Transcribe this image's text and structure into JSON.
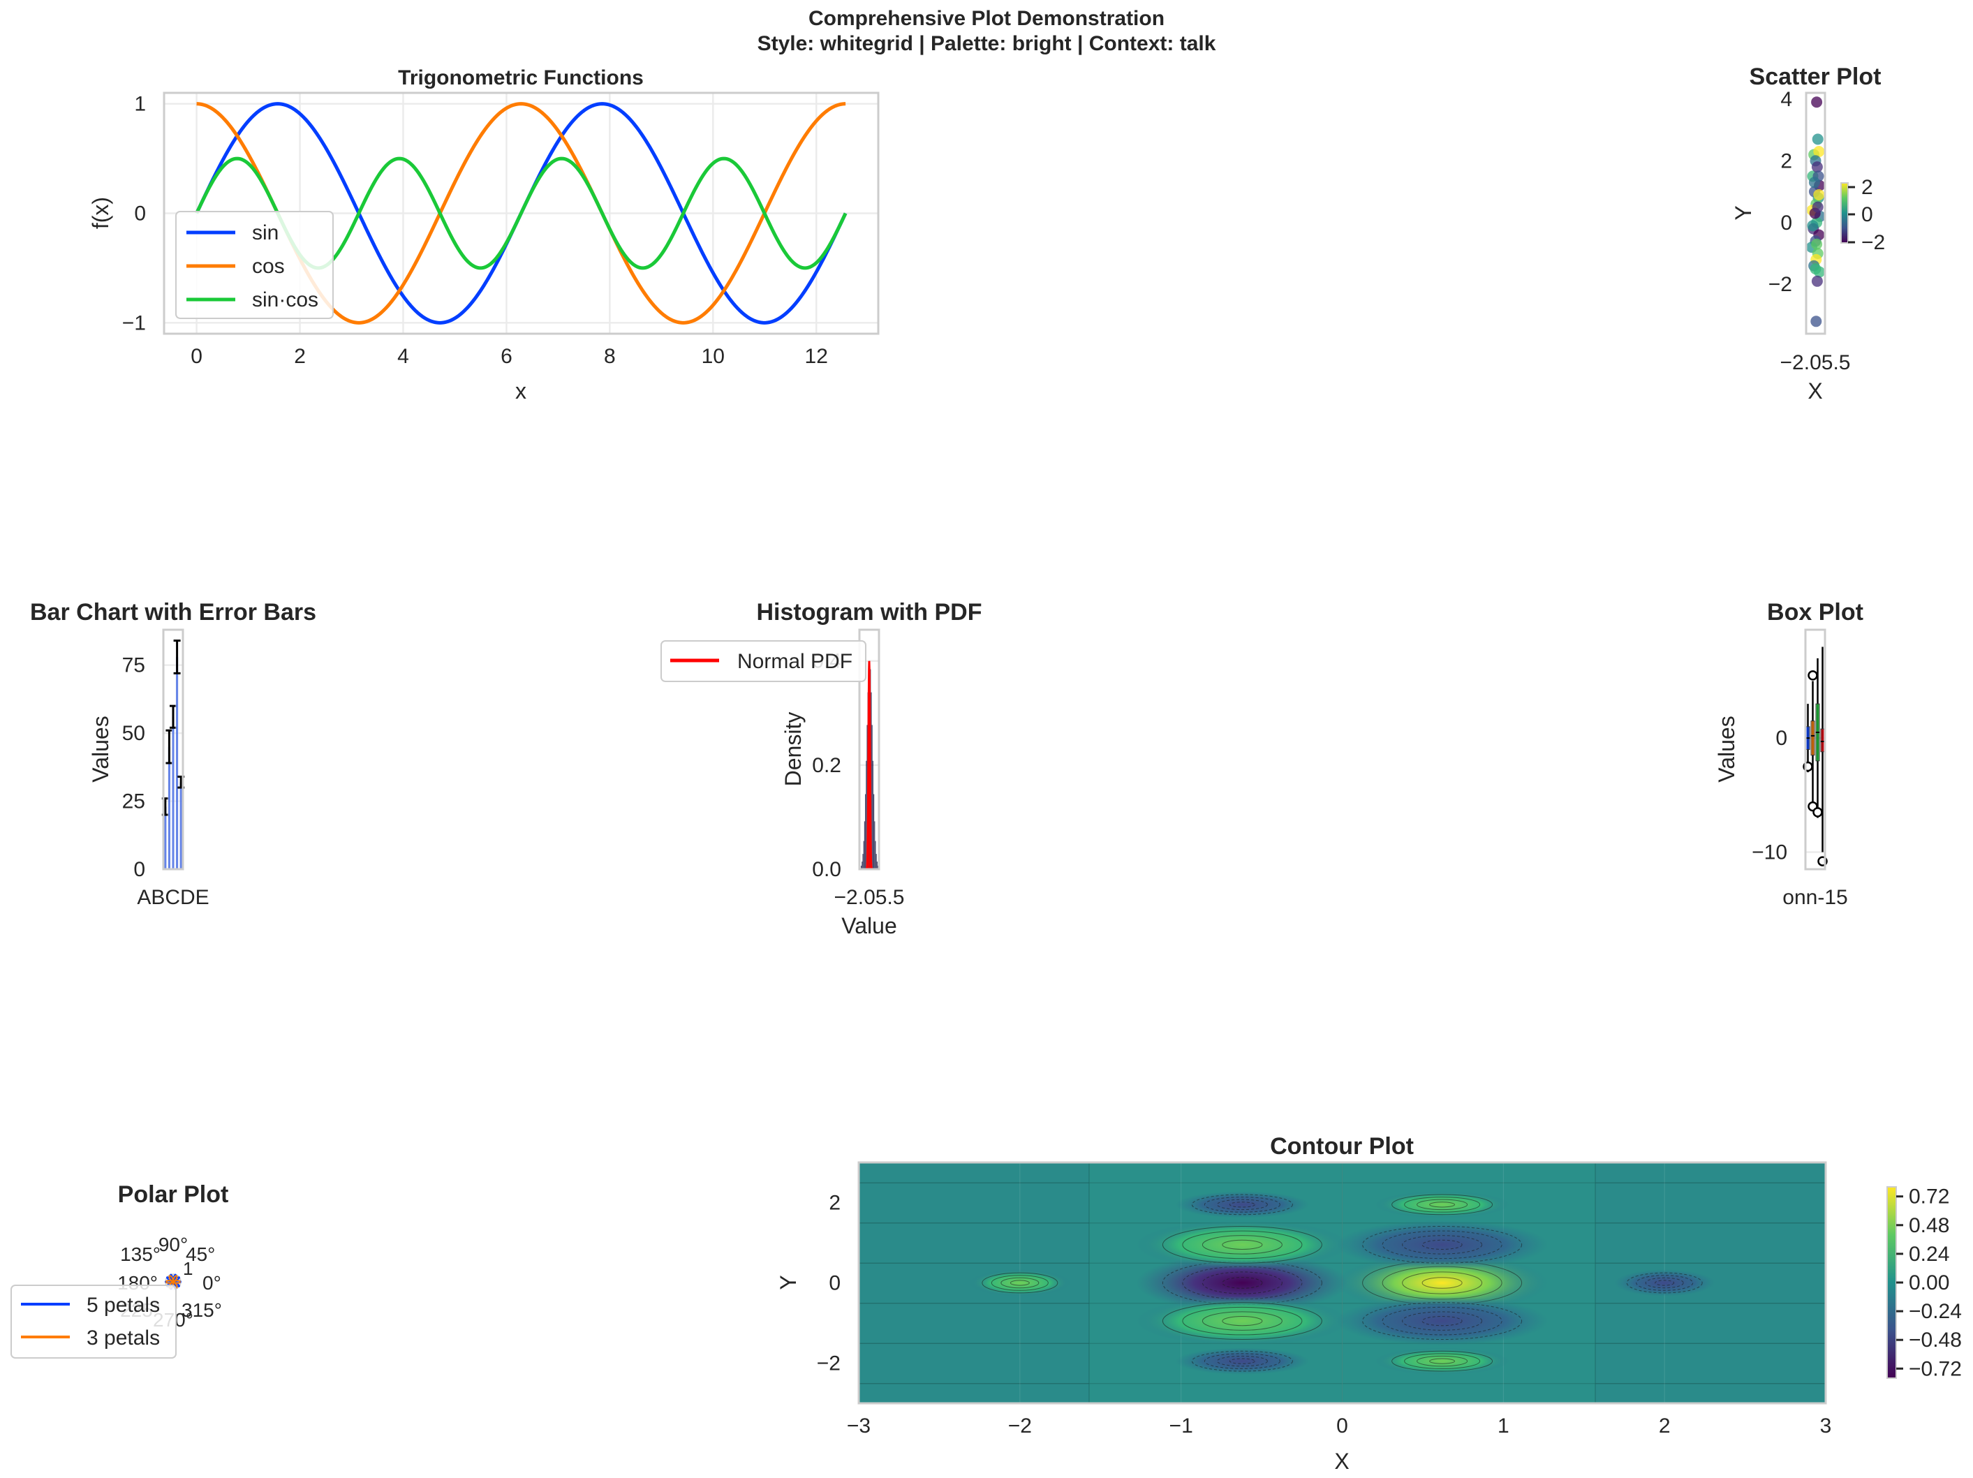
{
  "figure": {
    "suptitle_line1": "Comprehensive Plot Demonstration",
    "suptitle_line2": "Style: whitegrid | Palette: bright | Context: talk"
  },
  "palette": {
    "blue": "#023eff",
    "orange": "#ff7c00",
    "green": "#1ac938",
    "red": "#e8000b",
    "purple": "#8b2be2",
    "brown": "#9f4800",
    "pink": "#f14cc1",
    "gray": "#a3a3a3"
  },
  "chart_data": [
    {
      "id": "trig",
      "type": "line",
      "title": "Trigonometric Functions",
      "xlabel": "x",
      "ylabel": "f(x)",
      "xlim": [
        -0.63,
        13.2
      ],
      "ylim": [
        -1.1,
        1.1
      ],
      "xticks": [
        "0",
        "2",
        "4",
        "6",
        "8",
        "10",
        "12"
      ],
      "yticks": [
        "−1",
        "0",
        "1"
      ],
      "x_range": [
        0,
        12.566
      ],
      "series": [
        {
          "name": "sin",
          "color": "#023eff"
        },
        {
          "name": "cos",
          "color": "#ff7c00"
        },
        {
          "name": "sin·cos",
          "color": "#1ac938"
        }
      ],
      "legend": "lower-left"
    },
    {
      "id": "scatter",
      "type": "scatter",
      "title": "Scatter Plot",
      "xlabel": "X",
      "ylabel": "Y",
      "yticks": [
        "−2",
        "0",
        "2",
        "4"
      ],
      "ylim": [
        -3.6,
        4.2
      ],
      "xtick_text": "−2.05.5",
      "colorbar_ticks": [
        "2",
        "0",
        "−2"
      ],
      "points": [
        [
          0.2,
          3.9
        ],
        [
          0.1,
          -3.2
        ],
        [
          0.4,
          2.7
        ],
        [
          -0.3,
          2.2
        ],
        [
          0.6,
          2.3
        ],
        [
          0.0,
          2.0
        ],
        [
          -0.5,
          1.5
        ],
        [
          0.3,
          1.8
        ],
        [
          0.7,
          1.2
        ],
        [
          -0.2,
          1.0
        ],
        [
          0.5,
          0.8
        ],
        [
          0.1,
          0.6
        ],
        [
          -0.6,
          0.4
        ],
        [
          0.8,
          0.2
        ],
        [
          0.2,
          0.0
        ],
        [
          -0.4,
          -0.2
        ],
        [
          0.6,
          -0.4
        ],
        [
          0.0,
          -0.6
        ],
        [
          -0.7,
          -0.8
        ],
        [
          0.4,
          -1.0
        ],
        [
          0.1,
          -1.2
        ],
        [
          -0.3,
          -1.4
        ],
        [
          0.7,
          -1.6
        ],
        [
          0.3,
          -1.9
        ],
        [
          -0.1,
          0.3
        ],
        [
          0.5,
          1.5
        ],
        [
          -0.5,
          -0.1
        ],
        [
          0.2,
          -0.7
        ],
        [
          0.6,
          0.9
        ],
        [
          -0.2,
          1.3
        ],
        [
          0.0,
          -1.5
        ],
        [
          0.4,
          0.5
        ]
      ]
    },
    {
      "id": "bar",
      "type": "bar",
      "title": "Bar Chart with Error Bars",
      "ylabel": "Values",
      "ylim": [
        0,
        88
      ],
      "yticks": [
        "0",
        "25",
        "50",
        "75"
      ],
      "xtick_text": "ABCDE",
      "categories": [
        "A",
        "B",
        "C",
        "D",
        "E"
      ],
      "values": [
        23,
        45,
        56,
        78,
        32
      ],
      "errors": [
        3,
        6,
        4,
        6,
        2
      ]
    },
    {
      "id": "hist",
      "type": "bar",
      "title": "Histogram with PDF",
      "xlabel": "Value",
      "ylabel": "Density",
      "ylim": [
        0,
        0.46
      ],
      "yticks": [
        "0.0",
        "0.2",
        "0.4"
      ],
      "xtick_text": "−2.05.5",
      "legend_label": "Normal PDF",
      "pdf_color": "#ff0000"
    },
    {
      "id": "box",
      "type": "box",
      "title": "Box Plot",
      "ylabel": "Values",
      "ylim": [
        -11.5,
        9.5
      ],
      "yticks": [
        "−10",
        "0"
      ],
      "xtick_text": "onn-15",
      "boxes": [
        {
          "color": "#023eff",
          "q1": -1.0,
          "med": 0.0,
          "q3": 1.0,
          "lo": -3,
          "hi": 3
        },
        {
          "color": "#ff7c00",
          "q1": -1.5,
          "med": 0.2,
          "q3": 1.5,
          "lo": -6,
          "hi": 5
        },
        {
          "color": "#1ac938",
          "q1": -2.0,
          "med": 0.5,
          "q3": 3.0,
          "lo": -7,
          "hi": 7
        },
        {
          "color": "#e8000b",
          "q1": -1.2,
          "med": -0.3,
          "q3": 0.8,
          "lo": -10,
          "hi": 8
        }
      ]
    },
    {
      "id": "polar",
      "type": "line",
      "title": "Polar Plot",
      "angle_labels": [
        "0°",
        "45°",
        "90°",
        "135°",
        "180°",
        "225°",
        "270°",
        "315°"
      ],
      "radial_label": "1",
      "series": [
        {
          "name": "5 petals",
          "color": "#023eff"
        },
        {
          "name": "3 petals",
          "color": "#ff7c00"
        }
      ]
    },
    {
      "id": "contour",
      "type": "heatmap",
      "title": "Contour Plot",
      "xlabel": "X",
      "ylabel": "Y",
      "xlim": [
        -3,
        3
      ],
      "ylim": [
        -3,
        3
      ],
      "xticks": [
        "−3",
        "−2",
        "−1",
        "0",
        "1",
        "2",
        "3"
      ],
      "yticks": [
        "−2",
        "0",
        "2"
      ],
      "colorbar_ticks": [
        "0.72",
        "0.48",
        "0.24",
        "0.00",
        "−0.24",
        "−0.48",
        "−0.72"
      ]
    }
  ]
}
